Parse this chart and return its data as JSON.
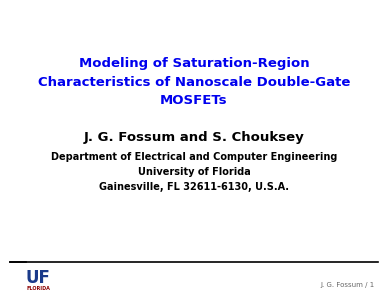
{
  "title_line1": "Modeling of Saturation-Region",
  "title_line2": "Characteristics of Nanoscale Double-Gate",
  "title_line3": "MOSFETs",
  "title_color": "#0000EE",
  "author": "J. G. Fossum and S. Chouksey",
  "author_color": "#000000",
  "dept_line1": "Department of Electrical and Computer Engineering",
  "dept_line2": "University of Florida",
  "dept_line3": "Gainesville, FL 32611-6130, U.S.A.",
  "dept_color": "#000000",
  "footer_text": "J. G. Fossum / 1",
  "footer_color": "#666666",
  "bg_color": "#ffffff",
  "uf_text_color": "#1a3a8a",
  "florida_text_color": "#8B0000",
  "line_color": "#000000",
  "title_fontsize": 9.5,
  "author_fontsize": 9.5,
  "dept_fontsize": 7.0,
  "footer_fontsize": 5.0,
  "uf_fontsize": 12,
  "florida_fontsize": 3.5
}
